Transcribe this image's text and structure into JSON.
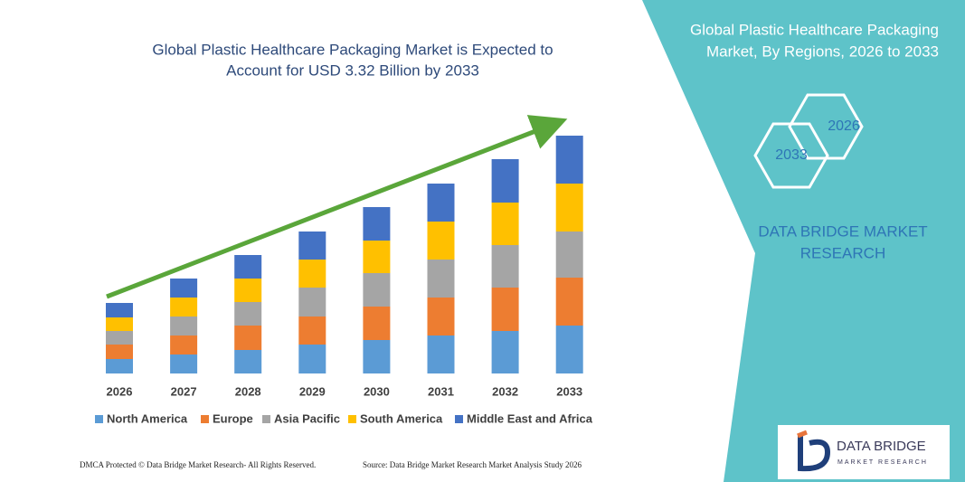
{
  "chart_data": {
    "type": "stacked-bar",
    "title": [
      "Global Plastic Healthcare Packaging Market is Expected to",
      "Account for USD 3.32 Billion by 2033"
    ],
    "categories": [
      "2026",
      "2027",
      "2028",
      "2029",
      "2030",
      "2031",
      "2032",
      "2033"
    ],
    "series": [
      {
        "name": "North America",
        "color": "#5b9bd5",
        "values": [
          16,
          21,
          26,
          32,
          37,
          42,
          47,
          53
        ]
      },
      {
        "name": "Europe",
        "color": "#ed7d31",
        "values": [
          16,
          21,
          27,
          31,
          37,
          42,
          48,
          53
        ]
      },
      {
        "name": "Asia Pacific",
        "color": "#a5a5a5",
        "values": [
          15,
          21,
          26,
          32,
          37,
          42,
          47,
          51
        ]
      },
      {
        "name": "South America",
        "color": "#ffc000",
        "values": [
          15,
          21,
          26,
          31,
          36,
          42,
          47,
          53
        ]
      },
      {
        "name": "Middle East and Africa",
        "color": "#4472c4",
        "values": [
          16,
          21,
          26,
          31,
          37,
          42,
          48,
          53
        ]
      }
    ],
    "ylim": [
      0,
      280
    ],
    "legend": "bottom"
  },
  "panel": {
    "title": [
      "Global Plastic Healthcare Packaging",
      "Market, By Regions, 2026 to 2033"
    ],
    "hexagons": [
      "2026",
      "2033"
    ],
    "brand": [
      "DATA BRIDGE MARKET",
      "RESEARCH"
    ]
  },
  "logo": {
    "name": "DATA BRIDGE",
    "tagline": "MARKET RESEARCH"
  },
  "footer": {
    "left": "DMCA Protected © Data Bridge Market Research-  All Rights Reserved.",
    "right": "Source: Data Bridge Market Research  Market Analysis Study 2026"
  }
}
